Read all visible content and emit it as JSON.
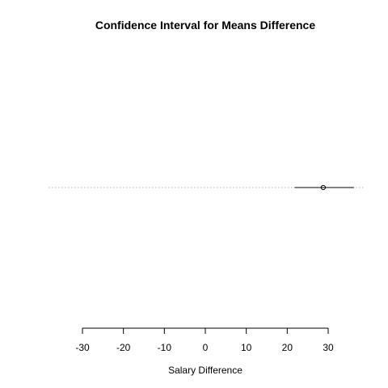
{
  "chart_data": {
    "type": "scatter",
    "title": "Confidence Interval for Means Difference",
    "xlabel": "Salary Difference",
    "ylabel": "",
    "xlim": [
      -30,
      38
    ],
    "x_ticks": [
      -30,
      -20,
      -10,
      0,
      10,
      20,
      30
    ],
    "x_tick_labels": [
      "-30",
      "-20",
      "-10",
      "0",
      "10",
      "20",
      "30"
    ],
    "point_estimate": 28.8,
    "ci_lower": 21.8,
    "ci_upper": 36.3,
    "reference_line": "dotted horizontal",
    "grid": false,
    "legend": "none"
  }
}
